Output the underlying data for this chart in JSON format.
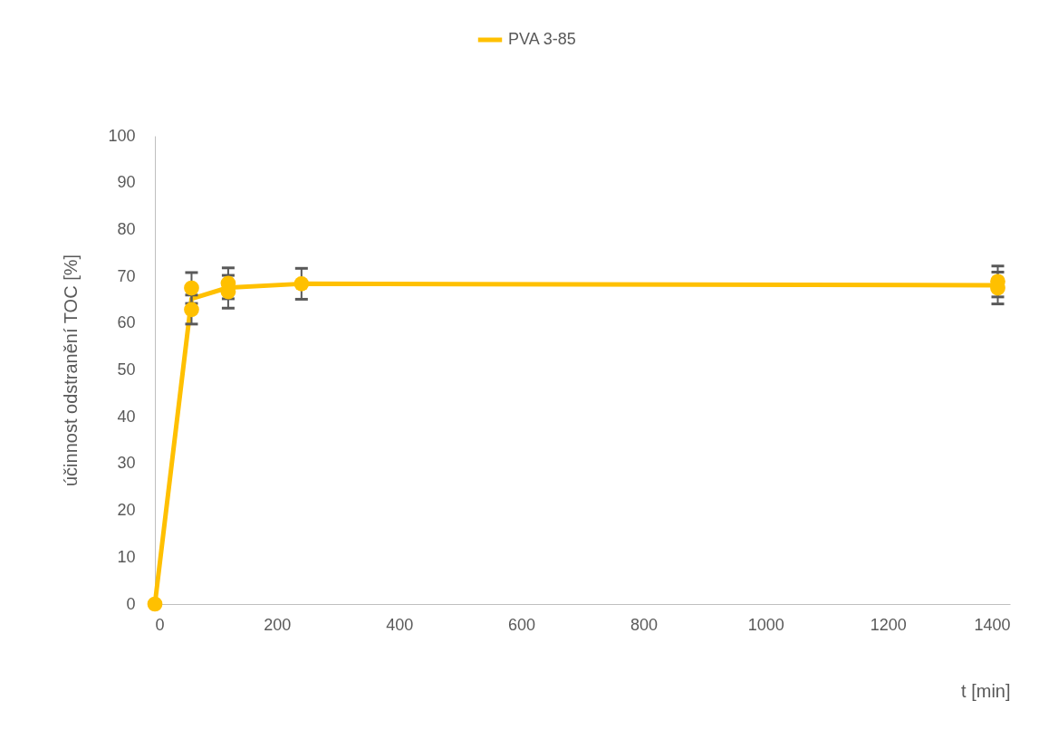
{
  "chart_data": {
    "type": "line",
    "ylabel": "účinnost odstranění TOC [%]",
    "xlabel": "t [min]",
    "xlim": [
      0,
      1400
    ],
    "xticks": [
      0,
      200,
      400,
      600,
      800,
      1000,
      1200,
      1400
    ],
    "ylim": [
      0,
      100
    ],
    "yticks": [
      0,
      10,
      20,
      30,
      40,
      50,
      60,
      70,
      80,
      90,
      100
    ],
    "grid": false,
    "legend": "top",
    "series": [
      {
        "name": "PVA 3-85",
        "type": "line",
        "color": "#ffc000",
        "marker": "none",
        "x": [
          0,
          60,
          120,
          240,
          1380
        ],
        "values": [
          0,
          65.2,
          67.6,
          68.4,
          68.1
        ]
      },
      {
        "type": "scatter",
        "color": "#ffc000",
        "marker": "circle",
        "x": [
          0,
          60,
          60,
          120,
          120,
          240,
          1380,
          1380
        ],
        "values": [
          0,
          67.5,
          62.9,
          68.5,
          66.7,
          68.4,
          68.9,
          67.5
        ],
        "errors": [
          null,
          3.3,
          3.1,
          3.3,
          3.5,
          3.3,
          3.3,
          3.4
        ]
      }
    ]
  }
}
